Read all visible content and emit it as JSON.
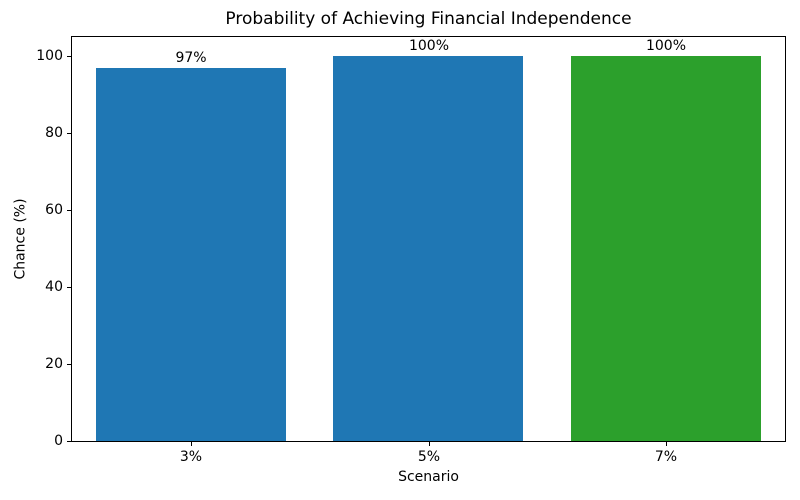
{
  "chart_data": {
    "type": "bar",
    "title": "Probability of Achieving Financial Independence",
    "xlabel": "Scenario",
    "ylabel": "Chance (%)",
    "categories": [
      "3%",
      "5%",
      "7%"
    ],
    "values": [
      97,
      100,
      100
    ],
    "bar_labels": [
      "97%",
      "100%",
      "100%"
    ],
    "bar_colors": [
      "#1f77b4",
      "#1f77b4",
      "#2ca02c"
    ],
    "ylim": [
      0,
      105
    ],
    "yticks": [
      0,
      20,
      40,
      60,
      80,
      100
    ],
    "grid": false,
    "legend": "none",
    "bar_width_fraction": 0.8,
    "axis_color": "#000000",
    "background_color": "#ffffff"
  }
}
